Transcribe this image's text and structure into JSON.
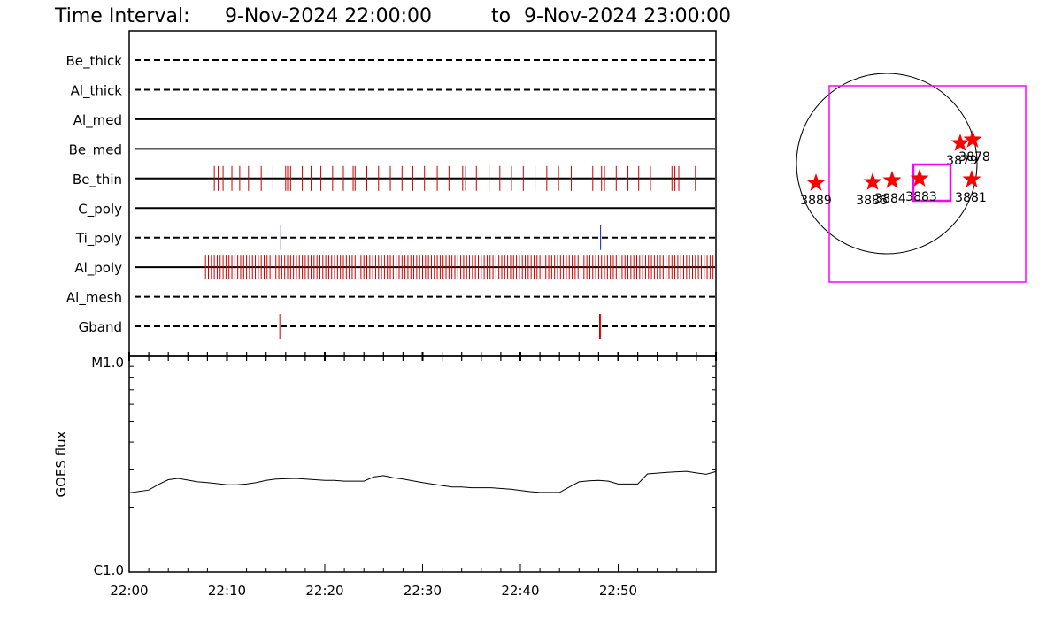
{
  "header": {
    "prefix": "Time Interval:",
    "start": "9-Nov-2024 22:00:00",
    "sep": "to",
    "end": "9-Nov-2024 23:00:00"
  },
  "colors": {
    "axis": "#000000",
    "event_red": "#cc0000",
    "event_blue": "#1a1acc",
    "star": "#ff0000",
    "box": "#ff00ff"
  },
  "chart_data": [
    {
      "type": "event-timeline",
      "channels": [
        {
          "name": "Be_thick",
          "style": "dashed"
        },
        {
          "name": "Al_thick",
          "style": "dashed"
        },
        {
          "name": "Al_med",
          "style": "solid"
        },
        {
          "name": "Be_med",
          "style": "solid"
        },
        {
          "name": "Be_thin",
          "style": "solid",
          "events": [
            {
              "color": "red",
              "times": [
                8.7,
                9.1,
                9.6,
                10.5,
                11.3,
                12.2,
                13.5,
                14.7,
                16.0,
                16.2,
                16.5,
                17.7,
                18.6,
                19.6,
                20.8,
                21.9,
                22.9,
                23.1,
                24.3,
                25.5,
                26.7,
                27.9,
                29.0,
                30.2,
                31.5,
                32.7,
                34.1,
                34.4,
                35.5,
                36.8,
                37.9,
                39.1,
                40.3,
                41.5,
                42.7,
                43.9,
                45.2,
                46.2,
                47.4,
                48.3,
                48.6,
                49.8,
                51.0,
                52.1,
                53.3,
                55.5,
                55.8,
                56.2,
                57.9
              ]
            }
          ]
        },
        {
          "name": "C_poly",
          "style": "solid"
        },
        {
          "name": "Ti_poly",
          "style": "dashed",
          "events": [
            {
              "color": "blue",
              "times": [
                15.5,
                48.2
              ]
            }
          ]
        },
        {
          "name": "Al_poly",
          "style": "solid",
          "events": [
            {
              "color": "red",
              "times": "dense 7.8-59.9 (~0.3 min spacing)"
            }
          ]
        },
        {
          "name": "Al_mesh",
          "style": "dashed"
        },
        {
          "name": "Gband",
          "style": "dashed",
          "events": [
            {
              "color": "red",
              "times": [
                15.4,
                48.1,
                48.2
              ]
            }
          ]
        }
      ],
      "xaxis": {
        "range_minutes": [
          0,
          60
        ],
        "tick_labels": [
          "22:00",
          "22:10",
          "22:20",
          "22:30",
          "22:40",
          "22:50"
        ]
      }
    },
    {
      "type": "line",
      "ylabel": "GOES flux",
      "ytick_labels": [
        "M1.0",
        "C1.0"
      ],
      "yscale": "log",
      "ylim": [
        1e-06,
        1e-05
      ],
      "x_minutes": [
        0,
        2,
        3,
        4,
        5,
        7,
        8,
        10,
        11,
        12,
        13,
        14,
        15,
        17,
        20,
        21,
        22,
        24,
        25,
        26,
        27,
        28,
        30,
        32,
        33,
        34,
        35,
        37,
        39,
        41,
        42,
        44,
        45,
        46,
        47,
        48,
        49,
        50,
        52,
        53,
        55,
        57,
        58,
        59,
        60
      ],
      "y": [
        2.33e-06,
        2.4e-06,
        2.55e-06,
        2.68e-06,
        2.72e-06,
        2.62e-06,
        2.6e-06,
        2.54e-06,
        2.54e-06,
        2.56e-06,
        2.6e-06,
        2.66e-06,
        2.7e-06,
        2.72e-06,
        2.66e-06,
        2.66e-06,
        2.64e-06,
        2.64e-06,
        2.76e-06,
        2.8e-06,
        2.74e-06,
        2.7e-06,
        2.6e-06,
        2.52e-06,
        2.48e-06,
        2.48e-06,
        2.46e-06,
        2.46e-06,
        2.42e-06,
        2.36e-06,
        2.34e-06,
        2.34e-06,
        2.48e-06,
        2.62e-06,
        2.65e-06,
        2.66e-06,
        2.64e-06,
        2.56e-06,
        2.56e-06,
        2.85e-06,
        2.9e-06,
        2.93e-06,
        2.88e-06,
        2.84e-06,
        2.92e-06
      ]
    },
    {
      "type": "scatter",
      "points": [
        {
          "label": "3889"
        },
        {
          "label": "3886"
        },
        {
          "label": "3884"
        },
        {
          "label": "3883"
        },
        {
          "label": "3881"
        },
        {
          "label": "3879"
        },
        {
          "label": "3878"
        }
      ]
    }
  ]
}
